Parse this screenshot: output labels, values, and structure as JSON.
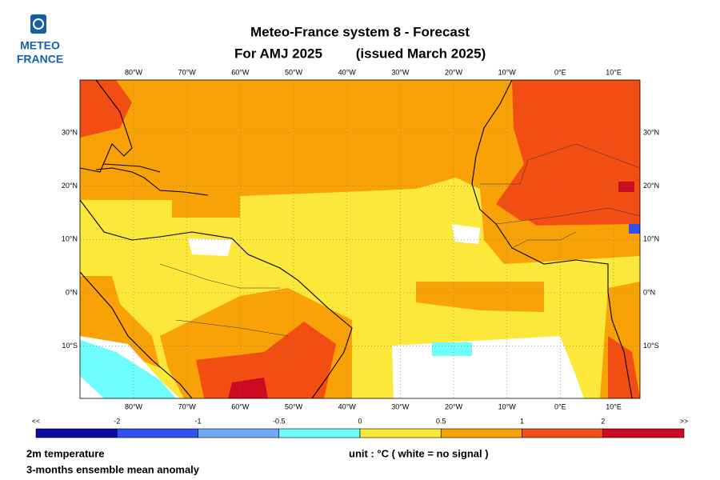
{
  "header": {
    "logo_line1": "METEO",
    "logo_line2": "FRANCE",
    "title": "Meteo-France system 8  -  Forecast",
    "subtitle_left": "For AMJ 2025",
    "subtitle_right": "(issued March 2025)"
  },
  "map": {
    "lon_labels": [
      "80°W",
      "70°W",
      "60°W",
      "50°W",
      "40°W",
      "30°W",
      "20°W",
      "10°W",
      "0°E",
      "10°E"
    ],
    "lat_labels": [
      "30°N",
      "20°N",
      "10°N",
      "0°N",
      "10°S"
    ]
  },
  "colorbar": {
    "labels": [
      "<<",
      "-2",
      "-1",
      "-0.5",
      "0",
      "0.5",
      "1",
      "2",
      ">>"
    ],
    "colors": [
      "#0a0aa0",
      "#3050f0",
      "#6fa8f5",
      "#6ffcfc",
      "#fbe83a",
      "#f8a208",
      "#f24e14",
      "#cc0a22"
    ]
  },
  "footer": {
    "variable": "2m temperature",
    "description": "3-months ensemble mean anomaly",
    "unit": "unit : °C  ( white = no signal )"
  }
}
